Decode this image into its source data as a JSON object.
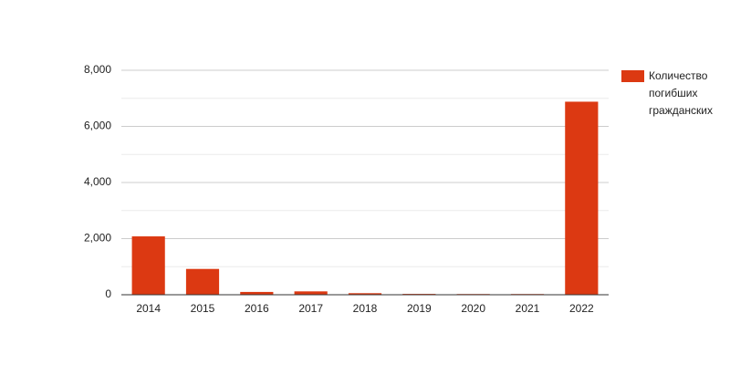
{
  "chart_data": {
    "type": "bar",
    "categories": [
      "2014",
      "2015",
      "2016",
      "2017",
      "2018",
      "2019",
      "2020",
      "2021",
      "2022"
    ],
    "series": [
      {
        "name": "Количество погибших гражданских",
        "color": "#dc3912",
        "values": [
          2080,
          920,
          100,
          120,
          55,
          30,
          25,
          25,
          6880
        ]
      }
    ],
    "ylim": [
      0,
      8000
    ],
    "yticks": [
      0,
      {
        "value": 2000,
        "label": "2,000"
      },
      {
        "value": 4000,
        "label": "4,000"
      },
      {
        "value": 6000,
        "label": "6,000"
      },
      {
        "value": 8000,
        "label": "8,000"
      }
    ],
    "minor_yticks": [
      1000,
      3000,
      5000,
      7000
    ],
    "grid": true,
    "legend": "right"
  }
}
